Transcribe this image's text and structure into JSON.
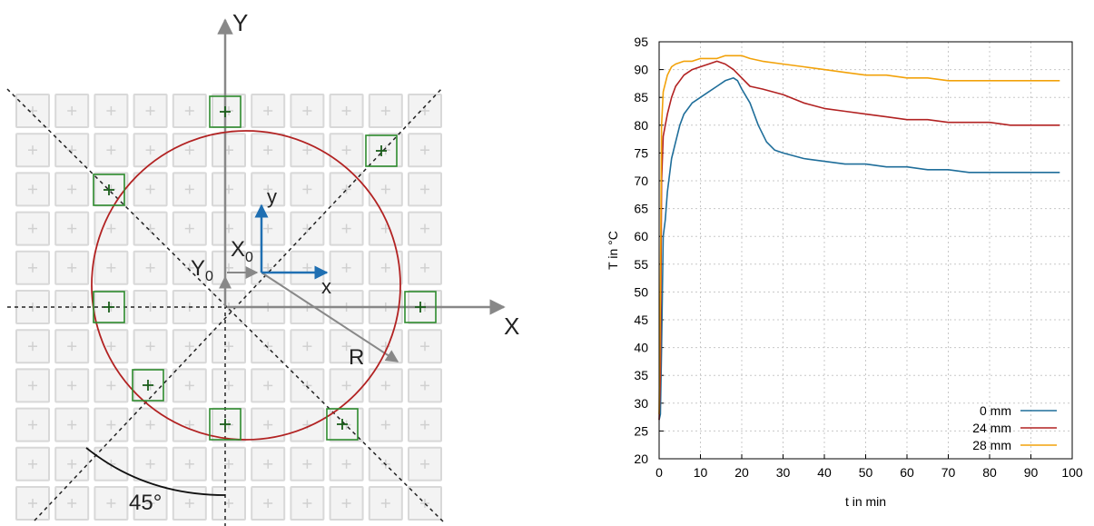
{
  "diagram": {
    "axis_x": "X",
    "axis_y": "Y",
    "local_x": "x",
    "local_y": "y",
    "x0_base": "X",
    "x0_sub": "0",
    "y0_base": "Y",
    "y0_sub": "0",
    "radius": "R",
    "angle": "45°",
    "colors": {
      "circle": "#b22222",
      "marker": "#2e8b2e",
      "local_axes": "#1f6fb2",
      "tile": "#d8d8d8",
      "axes": "#888888"
    },
    "grid": {
      "rows": 11,
      "cols": 11
    }
  },
  "chart_data": {
    "type": "line",
    "xlabel": "t in min",
    "ylabel": "T in °C",
    "xlim": [
      0,
      100
    ],
    "ylim": [
      20,
      95
    ],
    "xticks": [
      0,
      10,
      20,
      30,
      40,
      50,
      60,
      70,
      80,
      90,
      100
    ],
    "yticks": [
      20,
      25,
      30,
      35,
      40,
      45,
      50,
      55,
      60,
      65,
      70,
      75,
      80,
      85,
      90,
      95
    ],
    "grid": true,
    "legend_position": "bottom-right",
    "series": [
      {
        "name": "0 mm",
        "color": "#1f6e9a",
        "x": [
          0,
          0.3,
          0.6,
          1,
          1.5,
          2,
          3,
          4,
          5,
          6,
          8,
          10,
          12,
          14,
          16,
          18,
          19,
          20,
          22,
          24,
          26,
          28,
          30,
          35,
          40,
          45,
          50,
          55,
          60,
          65,
          70,
          75,
          80,
          85,
          90,
          95,
          97
        ],
        "y": [
          27,
          28,
          40,
          60,
          63,
          68,
          74,
          77,
          80,
          82,
          84,
          85,
          86,
          87,
          88,
          88.5,
          88,
          86.5,
          84,
          80,
          77,
          75.5,
          75,
          74,
          73.5,
          73,
          73,
          72.5,
          72.5,
          72,
          72,
          71.5,
          71.5,
          71.5,
          71.5,
          71.5,
          71.5
        ]
      },
      {
        "name": "24 mm",
        "color": "#b22222",
        "x": [
          0,
          0.3,
          0.6,
          1,
          2,
          3,
          4,
          5,
          6,
          8,
          10,
          12,
          14,
          16,
          18,
          20,
          22,
          25,
          30,
          35,
          40,
          45,
          50,
          55,
          60,
          65,
          70,
          75,
          80,
          85,
          90,
          95,
          97
        ],
        "y": [
          27,
          35,
          70,
          78,
          82,
          85,
          87,
          88,
          89,
          90,
          90.5,
          91,
          91.5,
          91,
          90,
          88.5,
          87,
          86.5,
          85.5,
          84,
          83,
          82.5,
          82,
          81.5,
          81,
          81,
          80.5,
          80.5,
          80.5,
          80,
          80,
          80,
          80
        ]
      },
      {
        "name": "28 mm",
        "color": "#f2a20a",
        "x": [
          0,
          0.3,
          0.6,
          1,
          2,
          3,
          4,
          6,
          8,
          10,
          12,
          14,
          16,
          18,
          20,
          22,
          25,
          30,
          35,
          40,
          45,
          50,
          55,
          60,
          65,
          70,
          75,
          80,
          85,
          90,
          95,
          97
        ],
        "y": [
          28,
          50,
          80,
          86,
          89,
          90.5,
          91,
          91.5,
          91.5,
          92,
          92,
          92,
          92.5,
          92.5,
          92.5,
          92,
          91.5,
          91,
          90.5,
          90,
          89.5,
          89,
          89,
          88.5,
          88.5,
          88,
          88,
          88,
          88,
          88,
          88,
          88
        ]
      }
    ]
  }
}
